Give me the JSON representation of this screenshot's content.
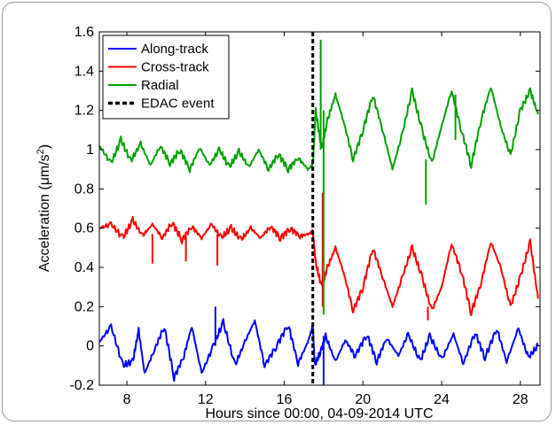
{
  "chart_data": {
    "type": "line",
    "title": "",
    "xlabel": "Hours since 00:00, 04-09-2014 UTC",
    "ylabel": "Acceleration (μm/s²)",
    "ylabel_parts": {
      "main": "Acceleration (μm/s",
      "sup": "2",
      "end": ")"
    },
    "xlim": [
      6.6,
      29
    ],
    "ylim": [
      -0.2,
      1.6
    ],
    "xticks": [
      8,
      12,
      16,
      20,
      24,
      28
    ],
    "yticks": [
      -0.2,
      0,
      0.2,
      0.4,
      0.6,
      0.8,
      1,
      1.2,
      1.4,
      1.6
    ],
    "ytick_labels": [
      "-0.2",
      "0",
      "0.2",
      "0.4",
      "0.6",
      "0.8",
      "1",
      "1.2",
      "1.4",
      "1.6"
    ],
    "grid": false,
    "legend_position": "top-left",
    "event_time": 17.45,
    "series": [
      {
        "name": "Along-track",
        "color": "#0000ff",
        "x": [
          6.6,
          7.2,
          7.8,
          8.3,
          8.6,
          8.9,
          9.4,
          9.9,
          10.4,
          10.9,
          11.3,
          11.8,
          12.4,
          12.9,
          13.5,
          14.0,
          14.5,
          15.0,
          15.6,
          16.2,
          16.7,
          17.2,
          17.45,
          17.55,
          17.9,
          18.1,
          18.6,
          19.1,
          19.6,
          20.2,
          20.7,
          21.2,
          21.8,
          22.3,
          22.9,
          23.4,
          24.0,
          24.6,
          25.1,
          25.7,
          26.2,
          26.8,
          27.3,
          27.9,
          28.4,
          28.9
        ],
        "y": [
          0.02,
          0.1,
          -0.1,
          -0.08,
          0.08,
          -0.14,
          -0.02,
          0.1,
          -0.16,
          -0.05,
          0.1,
          -0.14,
          0.0,
          0.12,
          -0.1,
          0.02,
          0.13,
          -0.1,
          0.0,
          0.11,
          -0.09,
          0.02,
          0.1,
          -0.1,
          -0.02,
          0.05,
          -0.08,
          0.03,
          -0.05,
          0.06,
          -0.08,
          0.04,
          -0.05,
          0.06,
          -0.08,
          0.05,
          -0.07,
          0.06,
          -0.09,
          0.07,
          -0.06,
          0.09,
          -0.08,
          0.09,
          -0.06,
          0.0
        ]
      },
      {
        "name": "Cross-track",
        "color": "#ff0000",
        "x": [
          6.6,
          7.2,
          7.8,
          8.3,
          8.8,
          9.3,
          9.8,
          10.3,
          10.8,
          11.3,
          11.8,
          12.3,
          12.8,
          13.3,
          13.8,
          14.3,
          14.8,
          15.3,
          15.8,
          16.3,
          16.8,
          17.2,
          17.45,
          17.6,
          17.9,
          18.2,
          18.6,
          19.0,
          19.5,
          20.0,
          20.5,
          21.0,
          21.5,
          22.0,
          22.5,
          23.0,
          23.5,
          24.0,
          24.5,
          25.0,
          25.5,
          26.0,
          26.5,
          27.0,
          27.5,
          28.0,
          28.5,
          28.9
        ],
        "y": [
          0.6,
          0.62,
          0.55,
          0.64,
          0.56,
          0.62,
          0.55,
          0.63,
          0.54,
          0.61,
          0.55,
          0.62,
          0.55,
          0.6,
          0.54,
          0.6,
          0.55,
          0.61,
          0.55,
          0.6,
          0.56,
          0.57,
          0.58,
          0.42,
          0.3,
          0.4,
          0.5,
          0.38,
          0.18,
          0.3,
          0.5,
          0.35,
          0.2,
          0.35,
          0.5,
          0.35,
          0.18,
          0.3,
          0.52,
          0.38,
          0.17,
          0.32,
          0.53,
          0.4,
          0.2,
          0.35,
          0.53,
          0.24
        ]
      },
      {
        "name": "Radial",
        "color": "#00a000",
        "x": [
          6.6,
          7.2,
          7.7,
          8.2,
          8.7,
          9.2,
          9.7,
          10.2,
          10.7,
          11.2,
          11.7,
          12.2,
          12.7,
          13.2,
          13.7,
          14.2,
          14.7,
          15.2,
          15.7,
          16.2,
          16.7,
          17.2,
          17.45,
          17.6,
          17.9,
          18.2,
          18.6,
          19.0,
          19.5,
          20.0,
          20.5,
          21.0,
          21.5,
          22.0,
          22.5,
          23.0,
          23.5,
          24.0,
          24.5,
          25.0,
          25.5,
          26.0,
          26.5,
          27.0,
          27.5,
          28.0,
          28.5,
          28.9
        ],
        "y": [
          1.02,
          0.93,
          1.05,
          0.94,
          1.03,
          0.92,
          1.02,
          0.93,
          1.0,
          0.9,
          1.01,
          0.92,
          1.0,
          0.91,
          0.99,
          0.91,
          1.0,
          0.9,
          0.98,
          0.9,
          0.96,
          0.9,
          0.92,
          1.2,
          1.0,
          1.15,
          1.28,
          1.15,
          0.95,
          1.1,
          1.28,
          1.1,
          0.9,
          1.08,
          1.3,
          1.1,
          0.93,
          1.12,
          1.3,
          1.1,
          0.92,
          1.15,
          1.32,
          1.12,
          0.97,
          1.2,
          1.3,
          1.18
        ]
      }
    ],
    "spikes": [
      {
        "series": "Along-track",
        "x": 12.5,
        "y0": 0.0,
        "y1": 0.2
      },
      {
        "series": "Along-track",
        "x": 18.0,
        "y0": 0.05,
        "y1": -0.2
      },
      {
        "series": "Cross-track",
        "x": 9.3,
        "y0": 0.57,
        "y1": 0.42
      },
      {
        "series": "Cross-track",
        "x": 11.0,
        "y0": 0.56,
        "y1": 0.43
      },
      {
        "series": "Cross-track",
        "x": 12.6,
        "y0": 0.57,
        "y1": 0.41
      },
      {
        "series": "Cross-track",
        "x": 17.95,
        "y0": 0.2,
        "y1": 0.78
      },
      {
        "series": "Cross-track",
        "x": 23.3,
        "y0": 0.2,
        "y1": 0.13
      },
      {
        "series": "Radial",
        "x": 17.85,
        "y0": 1.0,
        "y1": 1.56
      },
      {
        "series": "Radial",
        "x": 18.0,
        "y0": 1.2,
        "y1": 0.16
      },
      {
        "series": "Radial",
        "x": 23.2,
        "y0": 0.95,
        "y1": 0.72
      },
      {
        "series": "Radial",
        "x": 24.7,
        "y0": 1.05,
        "y1": 1.28
      }
    ],
    "legend": [
      {
        "label": "Along-track",
        "color": "#0000ff",
        "style": "solid"
      },
      {
        "label": "Cross-track",
        "color": "#ff0000",
        "style": "solid"
      },
      {
        "label": "Radial",
        "color": "#00a000",
        "style": "solid"
      },
      {
        "label": "EDAC event",
        "color": "#000000",
        "style": "dashed"
      }
    ]
  }
}
